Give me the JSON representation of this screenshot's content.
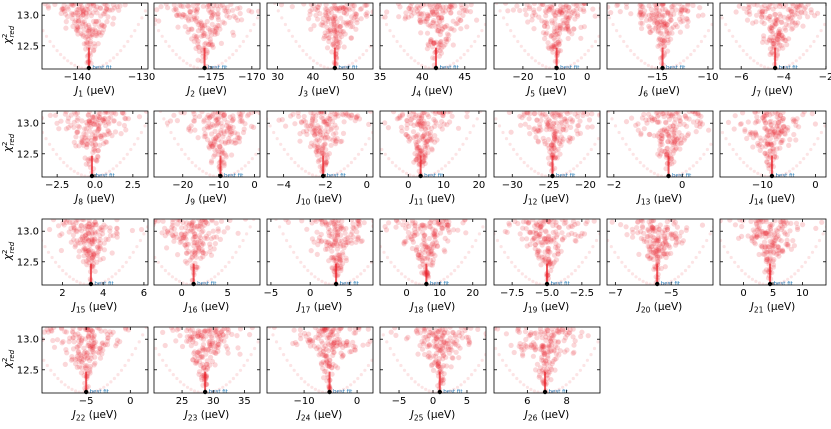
{
  "figure": {
    "ylabel": "χ²red",
    "yticks": [
      "13.0",
      "12.5"
    ],
    "yrange": [
      12.12,
      13.2
    ],
    "best_fit_label": "best fit",
    "marker_color": "#e8212a",
    "best_fit_color": "#1f77b4"
  },
  "chart_data": [
    {
      "type": "scatter",
      "param": "J1",
      "sub": "1",
      "xlabel": "J1 (μeV)",
      "xlim": [
        -145.5,
        -129
      ],
      "xticks": [
        -140,
        -130
      ],
      "best": -138.2,
      "width": 4,
      "ymin": 12.12,
      "ymax": 13.2
    },
    {
      "type": "scatter",
      "param": "J2",
      "sub": "2",
      "xlabel": "J2 (μeV)",
      "xlim": [
        -182,
        -169
      ],
      "xticks": [
        -175,
        -170
      ],
      "best": -175.8,
      "width": 5,
      "ymin": 12.12,
      "ymax": 13.2
    },
    {
      "type": "scatter",
      "param": "J3",
      "sub": "3",
      "xlabel": "J3 (μeV)",
      "xlim": [
        27,
        57
      ],
      "xticks": [
        30,
        40,
        50
      ],
      "best": 46.2,
      "width": 8,
      "ymin": 12.12,
      "ymax": 13.2
    },
    {
      "type": "scatter",
      "param": "J4",
      "sub": "4",
      "xlabel": "J4 (μeV)",
      "xlim": [
        35,
        47.5
      ],
      "xticks": [
        35,
        40,
        45
      ],
      "best": 41.6,
      "width": 4,
      "ymin": 12.12,
      "ymax": 13.2
    },
    {
      "type": "scatter",
      "param": "J5",
      "sub": "5",
      "xlabel": "J5 (μeV)",
      "xlim": [
        -29,
        4
      ],
      "xticks": [
        -20,
        -10,
        0
      ],
      "best": -9.5,
      "width": 10,
      "ymin": 12.12,
      "ymax": 13.2
    },
    {
      "type": "scatter",
      "param": "J6",
      "sub": "6",
      "xlabel": "J6 (μeV)",
      "xlim": [
        -20,
        -9.5
      ],
      "xticks": [
        -15,
        -10
      ],
      "best": -14.5,
      "width": 3,
      "ymin": 12.12,
      "ymax": 13.2
    },
    {
      "type": "scatter",
      "param": "J7",
      "sub": "7",
      "xlabel": "J7 (μeV)",
      "xlim": [
        -7,
        -2
      ],
      "xticks": [
        -6,
        -4,
        -2
      ],
      "best": -4.4,
      "width": 1.5,
      "ymin": 12.12,
      "ymax": 13.2
    },
    {
      "type": "scatter",
      "param": "J8",
      "sub": "8",
      "xlabel": "J8 (μeV)",
      "xlim": [
        -3.5,
        3.5
      ],
      "xticks": [
        -2.5,
        0.0,
        2.5
      ],
      "best": -0.2,
      "width": 2.2,
      "ymin": 12.12,
      "ymax": 13.2
    },
    {
      "type": "scatter",
      "param": "J9",
      "sub": "9",
      "xlabel": "J9 (μeV)",
      "xlim": [
        -28,
        1.5
      ],
      "xticks": [
        -20,
        -10,
        0
      ],
      "best": -9.5,
      "width": 9,
      "ymin": 12.12,
      "ymax": 13.2
    },
    {
      "type": "scatter",
      "param": "J10",
      "sub": "10",
      "xlabel": "J10 (μeV)",
      "xlim": [
        -4.8,
        0.3
      ],
      "xticks": [
        -4,
        -2,
        0
      ],
      "best": -2.1,
      "width": 1.5,
      "ymin": 12.12,
      "ymax": 13.2
    },
    {
      "type": "scatter",
      "param": "J11",
      "sub": "11",
      "xlabel": "J11 (μeV)",
      "xlim": [
        -8,
        22
      ],
      "xticks": [
        0,
        10,
        20
      ],
      "best": 3.5,
      "width": 9,
      "ymin": 12.12,
      "ymax": 13.2
    },
    {
      "type": "scatter",
      "param": "J12",
      "sub": "12",
      "xlabel": "J12 (μeV)",
      "xlim": [
        -32.5,
        -18
      ],
      "xticks": [
        -30,
        -25,
        -20
      ],
      "best": -24.5,
      "width": 4.5,
      "ymin": 12.12,
      "ymax": 13.2
    },
    {
      "type": "scatter",
      "param": "J13",
      "sub": "13",
      "xlabel": "J13 (μeV)",
      "xlim": [
        -2.2,
        0.9
      ],
      "xticks": [
        -2,
        0
      ],
      "best": -0.4,
      "width": 1,
      "ymin": 12.12,
      "ymax": 13.2
    },
    {
      "type": "scatter",
      "param": "J14",
      "sub": "14",
      "xlabel": "J14 (μeV)",
      "xlim": [
        -18,
        2
      ],
      "xticks": [
        -10,
        0
      ],
      "best": -8.2,
      "width": 6,
      "ymin": 12.12,
      "ymax": 13.2
    },
    {
      "type": "scatter",
      "param": "J15",
      "sub": "15",
      "xlabel": "J15 (μeV)",
      "xlim": [
        1,
        6.2
      ],
      "xticks": [
        2,
        4,
        6
      ],
      "best": 3.4,
      "width": 1.5,
      "ymin": 12.12,
      "ymax": 13.2
    },
    {
      "type": "scatter",
      "param": "J16",
      "sub": "16",
      "xlabel": "J16 (μeV)",
      "xlim": [
        -3,
        8.5
      ],
      "xticks": [
        0,
        5
      ],
      "best": 1.3,
      "width": 3.5,
      "ymin": 12.12,
      "ymax": 13.2
    },
    {
      "type": "scatter",
      "param": "J17",
      "sub": "17",
      "xlabel": "J17 (μeV)",
      "xlim": [
        -5.5,
        8
      ],
      "xticks": [
        -5,
        0,
        5
      ],
      "best": 3.3,
      "width": 4,
      "ymin": 12.12,
      "ymax": 13.2
    },
    {
      "type": "scatter",
      "param": "J18",
      "sub": "18",
      "xlabel": "J18 (μeV)",
      "xlim": [
        -8,
        24
      ],
      "xticks": [
        0,
        10,
        20
      ],
      "best": 6,
      "width": 9,
      "ymin": 12.12,
      "ymax": 13.2
    },
    {
      "type": "scatter",
      "param": "J19",
      "sub": "19",
      "xlabel": "J19 (μeV)",
      "xlim": [
        -8.8,
        -1.2
      ],
      "xticks": [
        -7.5,
        -5.0,
        -2.5
      ],
      "best": -5.0,
      "width": 2.2,
      "ymin": 12.12,
      "ymax": 13.2
    },
    {
      "type": "scatter",
      "param": "J20",
      "sub": "20",
      "xlabel": "J20 (μeV)",
      "xlim": [
        -7.3,
        -3.5
      ],
      "xticks": [
        -7,
        -5
      ],
      "best": -5.5,
      "width": 1.1,
      "ymin": 12.12,
      "ymax": 13.2
    },
    {
      "type": "scatter",
      "param": "J21",
      "sub": "21",
      "xlabel": "J21 (μeV)",
      "xlim": [
        -4,
        14
      ],
      "xticks": [
        0,
        5,
        10
      ],
      "best": 4.5,
      "width": 5,
      "ymin": 12.12,
      "ymax": 13.2
    },
    {
      "type": "scatter",
      "param": "J22",
      "sub": "22",
      "xlabel": "J22 (μeV)",
      "xlim": [
        -10,
        2
      ],
      "xticks": [
        -5,
        0
      ],
      "best": -5.0,
      "width": 3.5,
      "ymin": 12.12,
      "ymax": 13.2
    },
    {
      "type": "scatter",
      "param": "J23",
      "sub": "23",
      "xlabel": "J23 (μeV)",
      "xlim": [
        20.5,
        37.5
      ],
      "xticks": [
        25,
        30,
        35
      ],
      "best": 28.7,
      "width": 5,
      "ymin": 12.12,
      "ymax": 13.2
    },
    {
      "type": "scatter",
      "param": "J24",
      "sub": "24",
      "xlabel": "J24 (μeV)",
      "xlim": [
        -17,
        3
      ],
      "xticks": [
        -10,
        0
      ],
      "best": -5.2,
      "width": 6,
      "ymin": 12.12,
      "ymax": 13.2
    },
    {
      "type": "scatter",
      "param": "J25",
      "sub": "25",
      "xlabel": "J25 (μeV)",
      "xlim": [
        -7.8,
        7.8
      ],
      "xticks": [
        -5,
        0,
        5
      ],
      "best": 1,
      "width": 4.5,
      "ymin": 12.12,
      "ymax": 13.2
    },
    {
      "type": "scatter",
      "param": "J26",
      "sub": "26",
      "xlabel": "J26 (μeV)",
      "xlim": [
        4.3,
        9.7
      ],
      "xticks": [
        6,
        8
      ],
      "best": 6.9,
      "width": 1.6,
      "ymin": 12.12,
      "ymax": 13.2
    }
  ]
}
